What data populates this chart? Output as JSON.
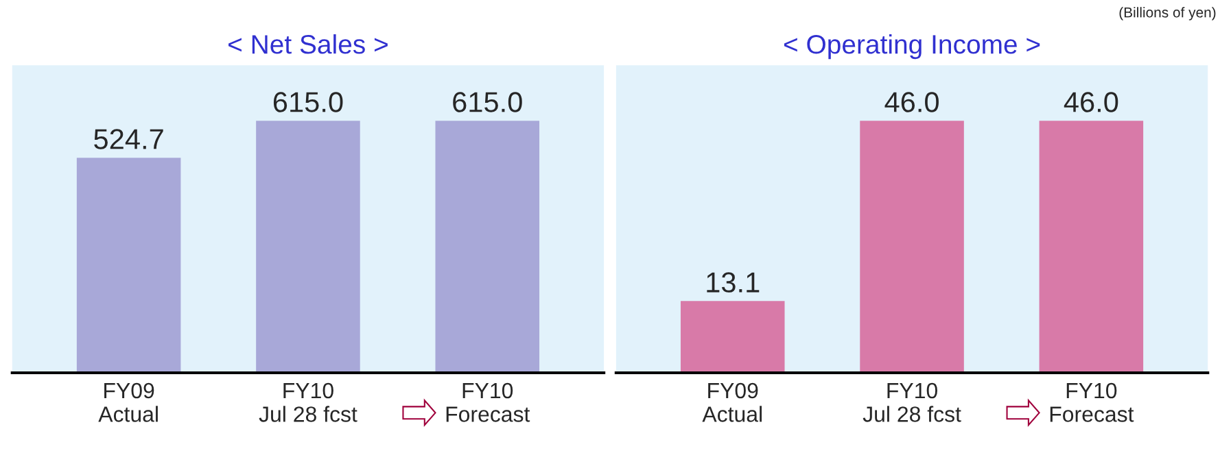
{
  "chart_data": [
    {
      "type": "bar",
      "title": "< Net Sales >",
      "categories": [
        "FY09\nActual",
        "FY10\nJul 28 fcst",
        "FY10\nForecast"
      ],
      "values": [
        524.7,
        615.0,
        615.0
      ],
      "color": "#a8a8d8",
      "data_labels": true,
      "value_labels": [
        "524.7",
        "615.0",
        "615.0"
      ],
      "grid": false,
      "legend": false
    },
    {
      "type": "bar",
      "title": "< Operating Income >",
      "categories": [
        "FY09\nActual",
        "FY10\nJul 28 fcst",
        "FY10\nForecast"
      ],
      "values": [
        13.1,
        46.0,
        46.0
      ],
      "color": "#d87aa8",
      "data_labels": true,
      "value_labels": [
        "13.1",
        "46.0",
        "46.0"
      ],
      "grid": false,
      "legend": false,
      "annotations": [
        "(Billions of yen)"
      ]
    }
  ]
}
